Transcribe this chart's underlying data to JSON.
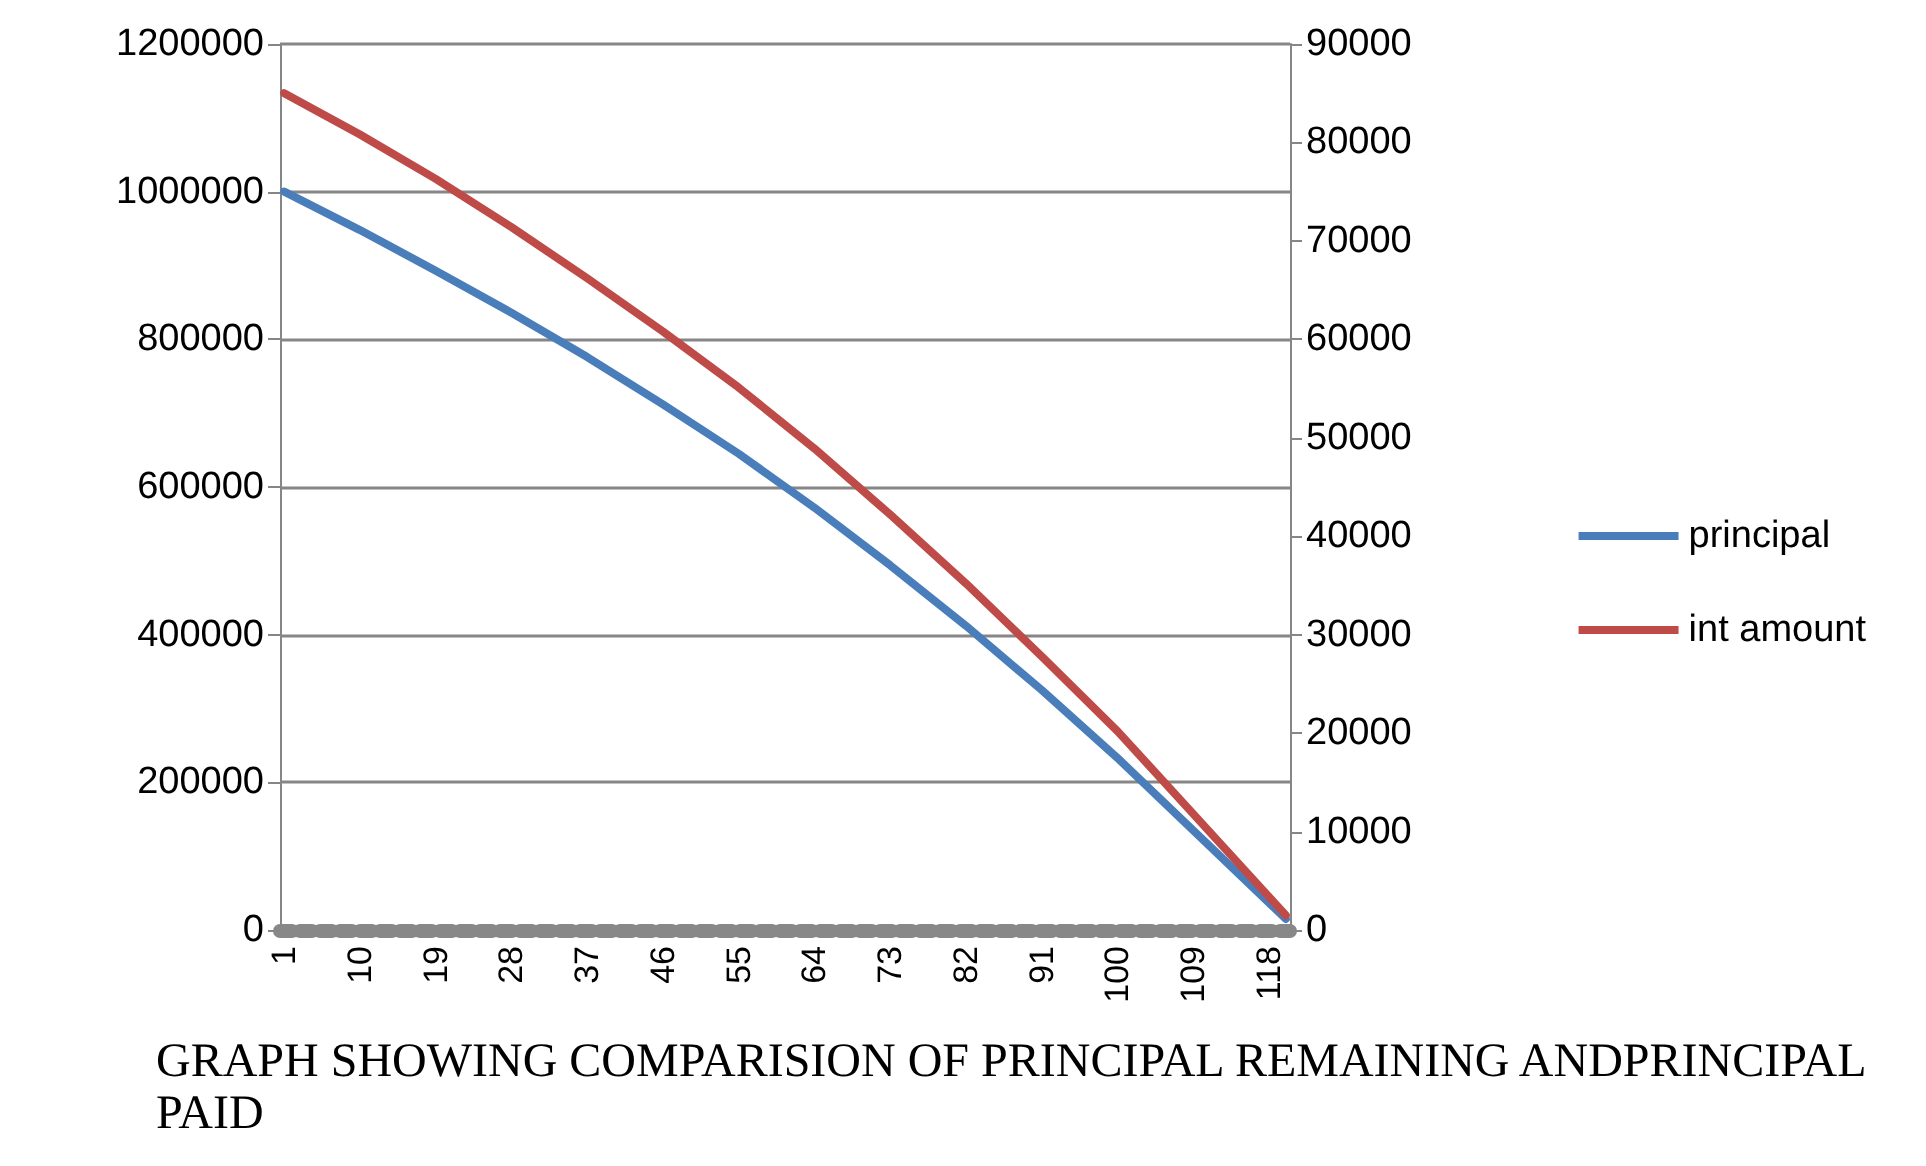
{
  "chart_data": {
    "type": "line",
    "x": [
      1,
      10,
      19,
      28,
      37,
      46,
      55,
      64,
      73,
      82,
      91,
      100,
      109,
      120
    ],
    "xlim": [
      0.5,
      120.5
    ],
    "xticks": [
      1,
      10,
      19,
      28,
      37,
      46,
      55,
      64,
      73,
      82,
      91,
      100,
      109,
      118
    ],
    "series": [
      {
        "name": "principal",
        "color": "#4a7ebb",
        "values": [
          1000000,
          948000,
          893000,
          836000,
          776000,
          712000,
          645000,
          572000,
          494000,
          412000,
          325000,
          233000,
          135000,
          15000
        ]
      },
      {
        "name": "int amount",
        "color": "#be4b48",
        "axis": "y2",
        "values": [
          85000,
          80800,
          76300,
          71400,
          66200,
          60800,
          55100,
          48900,
          42200,
          35200,
          27800,
          20200,
          11800,
          1500
        ]
      }
    ],
    "ylim": [
      0,
      1200000
    ],
    "yticks": [
      0,
      200000,
      400000,
      600000,
      800000,
      1000000,
      1200000
    ],
    "y2lim": [
      0,
      90000
    ],
    "y2ticks": [
      0,
      10000,
      20000,
      30000,
      40000,
      50000,
      60000,
      70000,
      80000,
      90000
    ],
    "grid": "y",
    "legend": "right",
    "marker": "none",
    "line_style": "solid",
    "annotations": [
      "GRAPH SHOWING COMPARISION OF PRINCIPAL REMAINING ANDPRINCIPAL PAID"
    ]
  }
}
